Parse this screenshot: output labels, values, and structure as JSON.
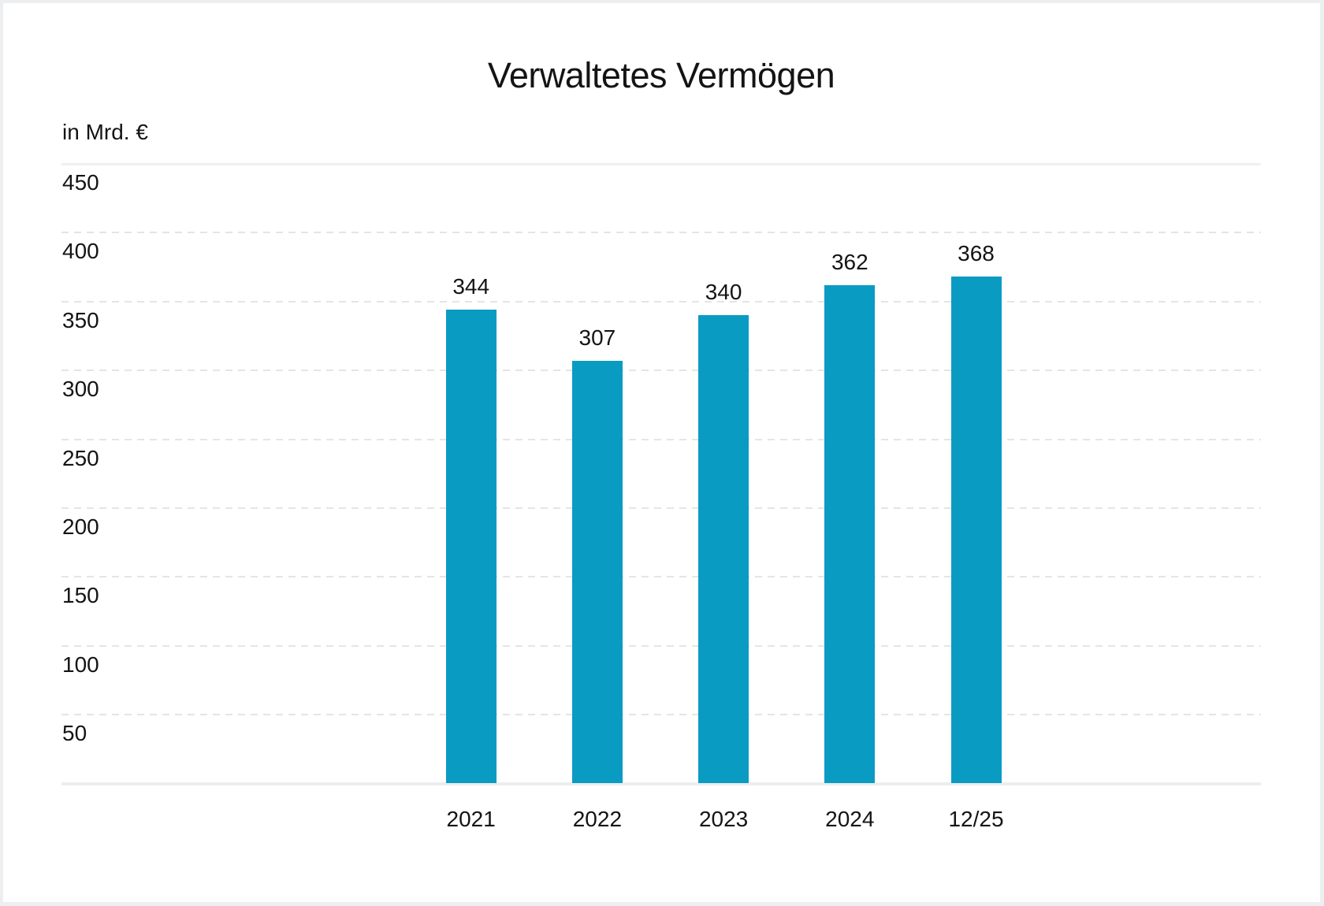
{
  "chart_data": {
    "type": "bar",
    "title": "Verwaltetes Vermögen",
    "unit_label": "in Mrd. €",
    "categories": [
      "2021",
      "2022",
      "2023",
      "2024",
      "12/25"
    ],
    "values": [
      344,
      307,
      340,
      362,
      368
    ],
    "value_labels": [
      "344",
      "307",
      "340",
      "362",
      "368"
    ],
    "xlabel": "",
    "ylabel": "in Mrd. €",
    "ylim": [
      0,
      450
    ],
    "ytick_step": 50,
    "ytick_labels": [
      "450",
      "400",
      "350",
      "300",
      "250",
      "200",
      "150",
      "100",
      "50"
    ],
    "grid": "horizontal-dashed",
    "legend": "none",
    "bar_color": "#0a9bc3",
    "grid_dash_color": "#e3e5e6",
    "axis_line_color": "#ebeeef",
    "text_color": "#141414",
    "background_color": "#ffffff",
    "frame_color": "#eceef0"
  }
}
